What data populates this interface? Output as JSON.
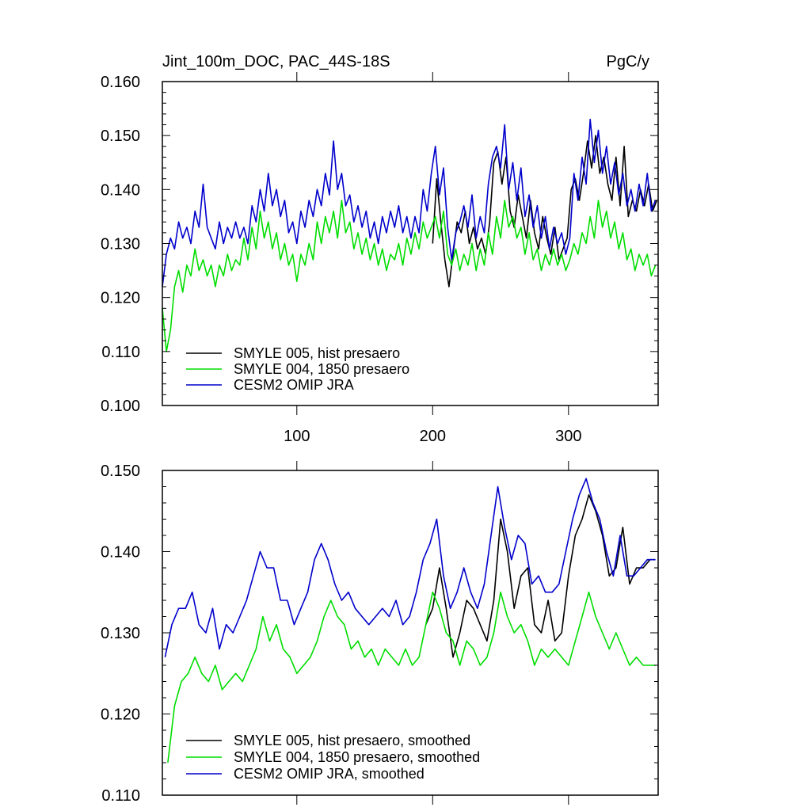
{
  "chart_data": [
    {
      "type": "line",
      "title": "Jint_100m_DOC, PAC_44S-18S",
      "units": "PgC/y",
      "xlim": [
        1,
        366
      ],
      "ylim": [
        0.1,
        0.16
      ],
      "x_ticks": [
        100,
        200,
        300
      ],
      "x_tick_labels": [
        "100",
        "200",
        "300"
      ],
      "y_ticks": [
        0.1,
        0.11,
        0.12,
        0.13,
        0.14,
        0.15,
        0.16
      ],
      "y_tick_labels": [
        "0.100",
        "0.110",
        "0.120",
        "0.130",
        "0.140",
        "0.150",
        "0.160"
      ],
      "legend_position": "bottom-left",
      "series": [
        {
          "name": "SMYLE 005, hist presaero",
          "color": "#000000",
          "x": [
            200,
            203,
            206,
            209,
            212,
            215,
            218,
            221,
            224,
            227,
            230,
            233,
            236,
            239,
            242,
            245,
            248,
            251,
            254,
            257,
            260,
            263,
            266,
            269,
            272,
            275,
            278,
            281,
            284,
            287,
            290,
            293,
            296,
            299,
            302,
            305,
            308,
            311,
            314,
            317,
            320,
            323,
            326,
            329,
            332,
            335,
            338,
            341,
            344,
            347,
            350,
            353,
            356,
            359,
            362,
            365
          ],
          "values": [
            0.13,
            0.142,
            0.134,
            0.127,
            0.122,
            0.128,
            0.134,
            0.132,
            0.136,
            0.13,
            0.133,
            0.129,
            0.131,
            0.128,
            0.134,
            0.145,
            0.147,
            0.141,
            0.146,
            0.136,
            0.133,
            0.139,
            0.135,
            0.131,
            0.138,
            0.132,
            0.129,
            0.135,
            0.131,
            0.128,
            0.133,
            0.127,
            0.129,
            0.131,
            0.14,
            0.142,
            0.138,
            0.143,
            0.149,
            0.144,
            0.15,
            0.143,
            0.146,
            0.141,
            0.138,
            0.146,
            0.137,
            0.148,
            0.135,
            0.138,
            0.136,
            0.14,
            0.137,
            0.141,
            0.136,
            0.138
          ]
        },
        {
          "name": "SMYLE 004, 1850 presaero",
          "color": "#00dd00",
          "x": [
            1,
            4,
            7,
            10,
            13,
            16,
            19,
            22,
            25,
            28,
            31,
            34,
            37,
            40,
            43,
            46,
            49,
            52,
            55,
            58,
            61,
            64,
            67,
            70,
            73,
            76,
            79,
            82,
            85,
            88,
            91,
            94,
            97,
            100,
            103,
            106,
            109,
            112,
            115,
            118,
            121,
            124,
            127,
            130,
            133,
            136,
            139,
            142,
            145,
            148,
            151,
            154,
            157,
            160,
            163,
            166,
            169,
            172,
            175,
            178,
            181,
            184,
            187,
            190,
            193,
            196,
            199,
            202,
            205,
            208,
            211,
            214,
            217,
            220,
            223,
            226,
            229,
            232,
            235,
            238,
            241,
            244,
            247,
            250,
            253,
            256,
            259,
            262,
            265,
            268,
            271,
            274,
            277,
            280,
            283,
            286,
            289,
            292,
            295,
            298,
            301,
            304,
            307,
            310,
            313,
            316,
            319,
            322,
            325,
            328,
            331,
            334,
            337,
            340,
            343,
            346,
            349,
            352,
            355,
            358,
            361,
            364
          ],
          "values": [
            0.118,
            0.11,
            0.114,
            0.122,
            0.125,
            0.121,
            0.126,
            0.124,
            0.129,
            0.125,
            0.127,
            0.124,
            0.126,
            0.122,
            0.126,
            0.124,
            0.128,
            0.125,
            0.127,
            0.126,
            0.131,
            0.127,
            0.133,
            0.129,
            0.136,
            0.131,
            0.134,
            0.129,
            0.132,
            0.127,
            0.13,
            0.126,
            0.128,
            0.123,
            0.128,
            0.126,
            0.13,
            0.127,
            0.134,
            0.13,
            0.135,
            0.132,
            0.136,
            0.131,
            0.138,
            0.132,
            0.134,
            0.129,
            0.132,
            0.128,
            0.131,
            0.127,
            0.13,
            0.126,
            0.129,
            0.125,
            0.128,
            0.127,
            0.13,
            0.126,
            0.131,
            0.128,
            0.132,
            0.129,
            0.134,
            0.131,
            0.133,
            0.135,
            0.131,
            0.136,
            0.128,
            0.126,
            0.129,
            0.125,
            0.128,
            0.126,
            0.13,
            0.125,
            0.129,
            0.126,
            0.132,
            0.128,
            0.135,
            0.131,
            0.138,
            0.133,
            0.135,
            0.131,
            0.133,
            0.128,
            0.132,
            0.127,
            0.129,
            0.125,
            0.128,
            0.126,
            0.129,
            0.126,
            0.128,
            0.125,
            0.127,
            0.13,
            0.128,
            0.132,
            0.13,
            0.135,
            0.131,
            0.138,
            0.133,
            0.136,
            0.131,
            0.134,
            0.129,
            0.132,
            0.127,
            0.129,
            0.125,
            0.128,
            0.126,
            0.128,
            0.124,
            0.126
          ]
        },
        {
          "name": "CESM2 OMIP JRA",
          "color": "#0000cc",
          "x": [
            1,
            4,
            7,
            10,
            13,
            16,
            19,
            22,
            25,
            28,
            31,
            34,
            37,
            40,
            43,
            46,
            49,
            52,
            55,
            58,
            61,
            64,
            67,
            70,
            73,
            76,
            79,
            82,
            85,
            88,
            91,
            94,
            97,
            100,
            103,
            106,
            109,
            112,
            115,
            118,
            121,
            124,
            127,
            130,
            133,
            136,
            139,
            142,
            145,
            148,
            151,
            154,
            157,
            160,
            163,
            166,
            169,
            172,
            175,
            178,
            181,
            184,
            187,
            190,
            193,
            196,
            199,
            202,
            205,
            208,
            211,
            214,
            217,
            220,
            223,
            226,
            229,
            232,
            235,
            238,
            241,
            244,
            247,
            250,
            253,
            256,
            259,
            262,
            265,
            268,
            271,
            274,
            277,
            280,
            283,
            286,
            289,
            292,
            295,
            298,
            301,
            304,
            307,
            310,
            313,
            316,
            319,
            322,
            325,
            328,
            331,
            334,
            337,
            340,
            343,
            346,
            349,
            352,
            355,
            358,
            361,
            364
          ],
          "values": [
            0.122,
            0.128,
            0.131,
            0.129,
            0.134,
            0.131,
            0.133,
            0.13,
            0.136,
            0.133,
            0.141,
            0.133,
            0.131,
            0.129,
            0.134,
            0.13,
            0.133,
            0.131,
            0.134,
            0.131,
            0.133,
            0.13,
            0.137,
            0.134,
            0.14,
            0.136,
            0.143,
            0.137,
            0.14,
            0.135,
            0.138,
            0.132,
            0.134,
            0.13,
            0.136,
            0.133,
            0.138,
            0.135,
            0.14,
            0.137,
            0.143,
            0.139,
            0.149,
            0.14,
            0.143,
            0.137,
            0.139,
            0.134,
            0.137,
            0.133,
            0.136,
            0.131,
            0.134,
            0.13,
            0.135,
            0.132,
            0.136,
            0.133,
            0.137,
            0.132,
            0.135,
            0.131,
            0.135,
            0.132,
            0.14,
            0.136,
            0.143,
            0.148,
            0.139,
            0.144,
            0.133,
            0.127,
            0.132,
            0.134,
            0.137,
            0.133,
            0.139,
            0.131,
            0.135,
            0.132,
            0.141,
            0.146,
            0.148,
            0.144,
            0.152,
            0.14,
            0.145,
            0.138,
            0.144,
            0.135,
            0.139,
            0.133,
            0.137,
            0.131,
            0.135,
            0.129,
            0.133,
            0.13,
            0.132,
            0.128,
            0.131,
            0.143,
            0.138,
            0.146,
            0.141,
            0.153,
            0.145,
            0.151,
            0.143,
            0.148,
            0.141,
            0.145,
            0.139,
            0.143,
            0.137,
            0.14,
            0.136,
            0.141,
            0.137,
            0.143,
            0.136,
            0.138
          ]
        }
      ]
    },
    {
      "type": "line",
      "title": "",
      "xlim": [
        1,
        366
      ],
      "ylim": [
        0.11,
        0.15
      ],
      "y_ticks": [
        0.11,
        0.12,
        0.13,
        0.14,
        0.15
      ],
      "y_tick_labels": [
        "0.110",
        "0.120",
        "0.130",
        "0.140",
        "0.150"
      ],
      "legend_position": "bottom-left",
      "series": [
        {
          "name": "SMYLE 005, hist presaero, smoothed",
          "color": "#000000",
          "x": [
            195,
            200,
            205,
            210,
            215,
            220,
            225,
            230,
            235,
            240,
            245,
            250,
            255,
            260,
            265,
            270,
            275,
            280,
            285,
            290,
            295,
            300,
            305,
            310,
            315,
            320,
            325,
            330,
            335,
            340,
            345,
            350,
            355,
            360,
            364
          ],
          "values": [
            0.131,
            0.133,
            0.138,
            0.133,
            0.127,
            0.13,
            0.134,
            0.133,
            0.131,
            0.129,
            0.134,
            0.144,
            0.14,
            0.133,
            0.137,
            0.138,
            0.131,
            0.13,
            0.134,
            0.129,
            0.13,
            0.137,
            0.142,
            0.144,
            0.147,
            0.145,
            0.142,
            0.137,
            0.138,
            0.143,
            0.136,
            0.138,
            0.138,
            0.139,
            0.139
          ]
        },
        {
          "name": "SMYLE 004, 1850 presaero, smoothed",
          "color": "#00dd00",
          "x": [
            5,
            10,
            15,
            20,
            25,
            30,
            35,
            40,
            45,
            50,
            55,
            60,
            65,
            70,
            75,
            80,
            85,
            90,
            95,
            100,
            105,
            110,
            115,
            120,
            125,
            130,
            135,
            140,
            145,
            150,
            155,
            160,
            165,
            170,
            175,
            180,
            185,
            190,
            195,
            200,
            205,
            210,
            215,
            220,
            225,
            230,
            235,
            240,
            245,
            250,
            255,
            260,
            265,
            270,
            275,
            280,
            285,
            290,
            295,
            300,
            305,
            310,
            315,
            320,
            325,
            330,
            335,
            340,
            345,
            350,
            355,
            360,
            364
          ],
          "values": [
            0.114,
            0.121,
            0.124,
            0.125,
            0.127,
            0.125,
            0.124,
            0.126,
            0.123,
            0.124,
            0.125,
            0.124,
            0.126,
            0.128,
            0.132,
            0.129,
            0.131,
            0.128,
            0.127,
            0.125,
            0.126,
            0.127,
            0.129,
            0.132,
            0.134,
            0.132,
            0.131,
            0.128,
            0.129,
            0.127,
            0.128,
            0.126,
            0.128,
            0.127,
            0.126,
            0.128,
            0.126,
            0.127,
            0.131,
            0.135,
            0.133,
            0.13,
            0.129,
            0.126,
            0.129,
            0.128,
            0.126,
            0.127,
            0.13,
            0.135,
            0.132,
            0.13,
            0.131,
            0.129,
            0.126,
            0.128,
            0.127,
            0.128,
            0.127,
            0.126,
            0.129,
            0.132,
            0.135,
            0.132,
            0.13,
            0.128,
            0.13,
            0.128,
            0.126,
            0.127,
            0.126,
            0.126,
            0.126
          ]
        },
        {
          "name": "CESM2 OMIP JRA, smoothed",
          "color": "#0000cc",
          "x": [
            3,
            8,
            13,
            18,
            23,
            28,
            33,
            38,
            43,
            48,
            53,
            58,
            63,
            68,
            73,
            78,
            83,
            88,
            93,
            98,
            103,
            108,
            113,
            118,
            123,
            128,
            133,
            138,
            143,
            148,
            153,
            158,
            163,
            168,
            173,
            178,
            183,
            188,
            193,
            198,
            203,
            208,
            213,
            218,
            223,
            228,
            233,
            238,
            243,
            248,
            253,
            258,
            263,
            268,
            273,
            278,
            283,
            288,
            293,
            298,
            303,
            308,
            313,
            318,
            323,
            328,
            333,
            338,
            343,
            348,
            353,
            358,
            364
          ],
          "values": [
            0.127,
            0.131,
            0.133,
            0.133,
            0.135,
            0.131,
            0.13,
            0.133,
            0.128,
            0.131,
            0.13,
            0.132,
            0.134,
            0.137,
            0.14,
            0.138,
            0.138,
            0.134,
            0.134,
            0.131,
            0.133,
            0.135,
            0.139,
            0.141,
            0.139,
            0.136,
            0.134,
            0.135,
            0.133,
            0.132,
            0.131,
            0.132,
            0.133,
            0.132,
            0.134,
            0.131,
            0.132,
            0.135,
            0.139,
            0.141,
            0.144,
            0.137,
            0.133,
            0.135,
            0.138,
            0.135,
            0.133,
            0.136,
            0.142,
            0.148,
            0.143,
            0.139,
            0.142,
            0.141,
            0.136,
            0.137,
            0.135,
            0.135,
            0.136,
            0.14,
            0.144,
            0.147,
            0.149,
            0.146,
            0.144,
            0.14,
            0.137,
            0.142,
            0.137,
            0.137,
            0.138,
            0.139,
            0.139
          ]
        }
      ]
    }
  ]
}
